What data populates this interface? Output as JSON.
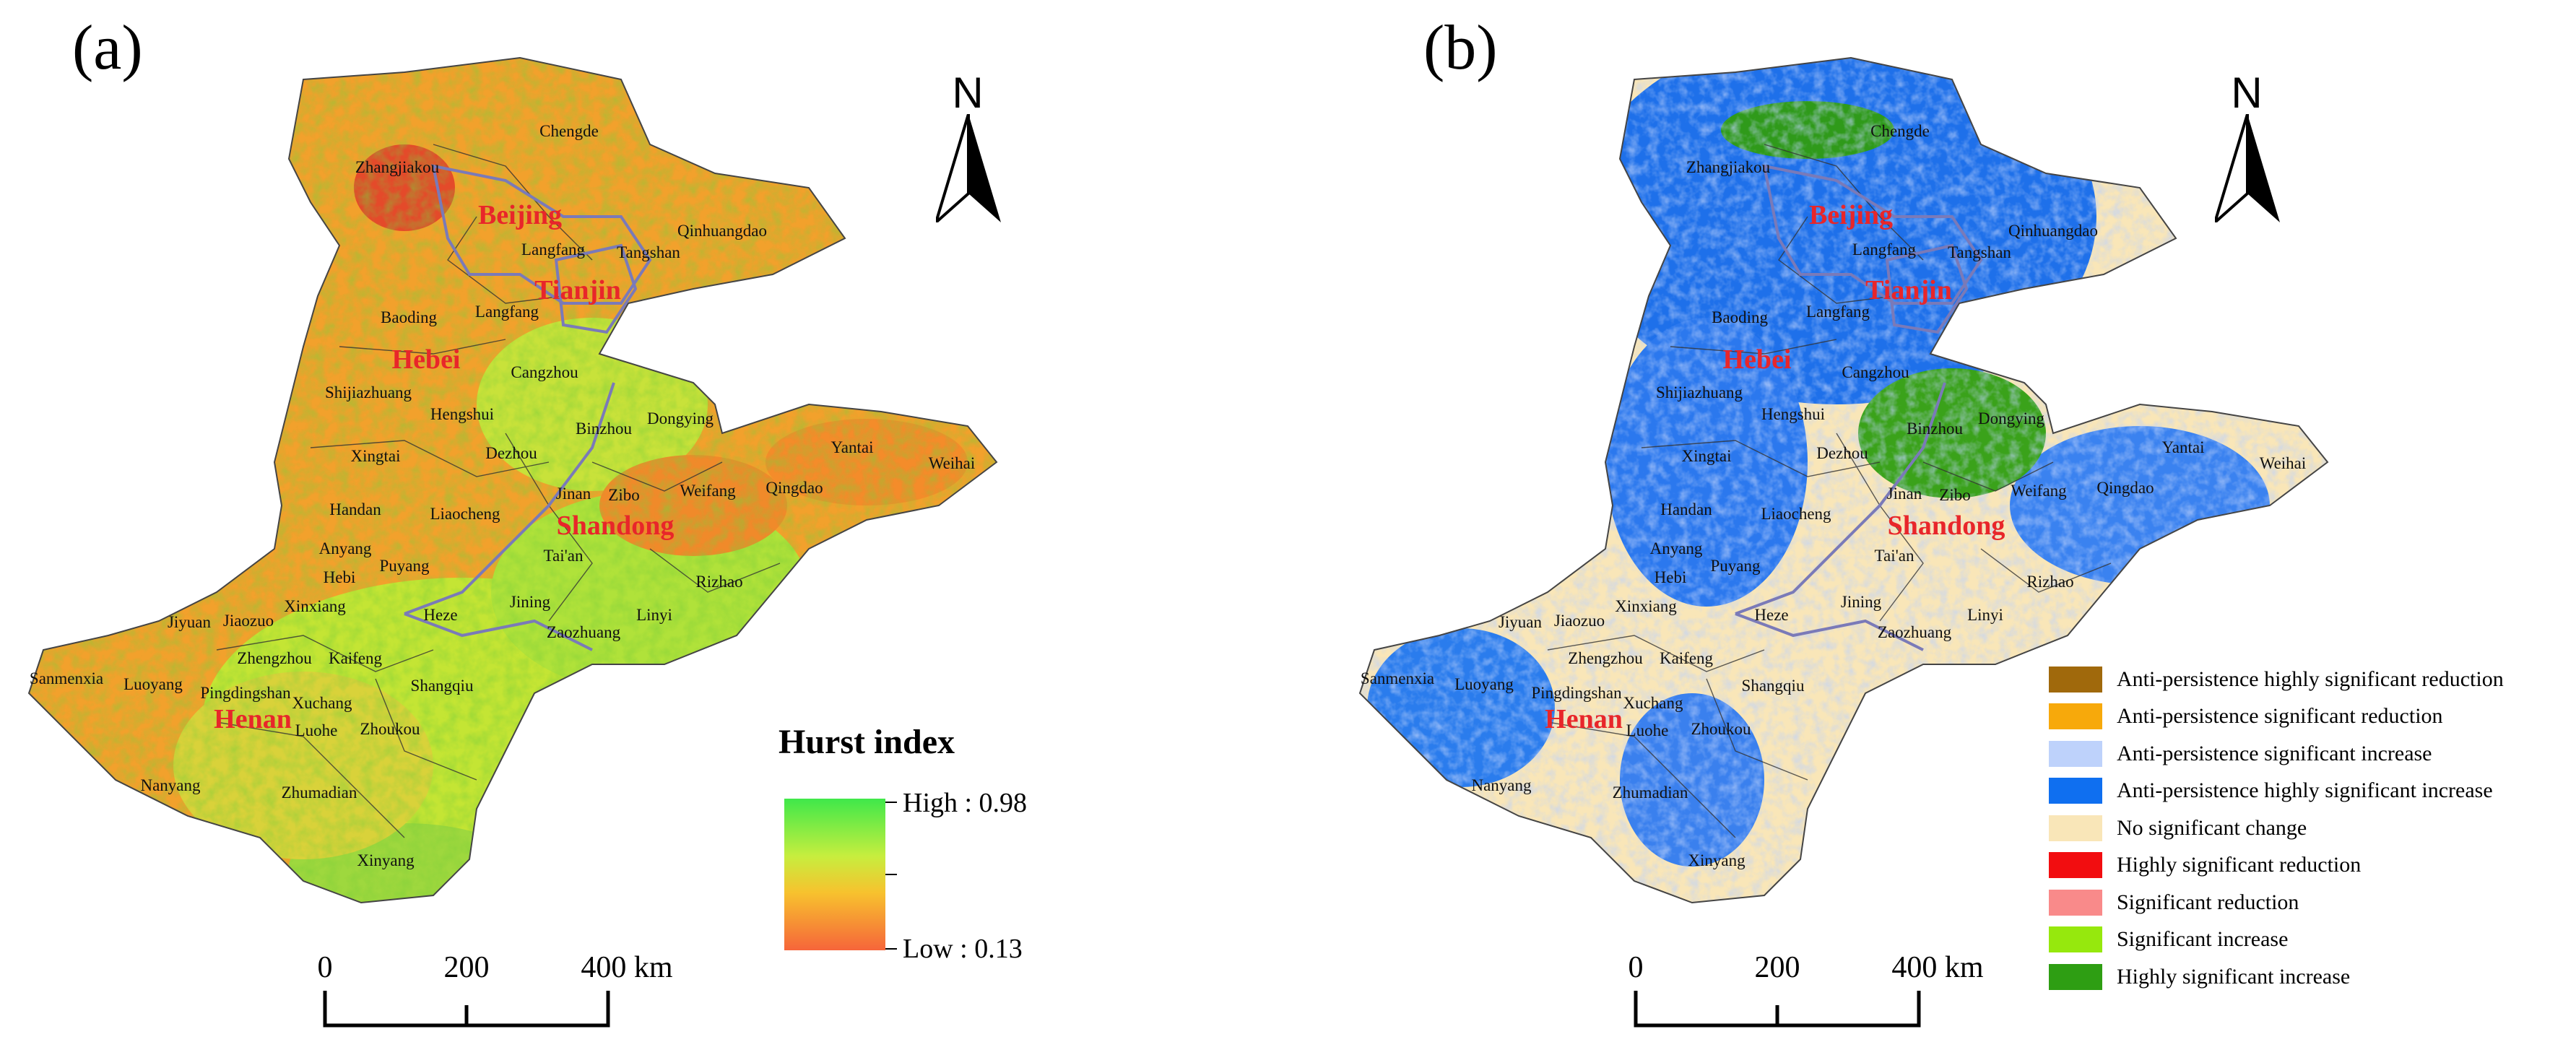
{
  "panel_a": {
    "label": "(a)",
    "north_label": "N",
    "scale": {
      "ticks": [
        "0",
        "200",
        "400 km"
      ]
    },
    "legend": {
      "title": "Hurst index",
      "high_label": "High : 0.98",
      "low_label": "Low : 0.13"
    }
  },
  "panel_b": {
    "label": "(b)",
    "north_label": "N",
    "scale": {
      "ticks": [
        "0",
        "200",
        "400 km"
      ]
    },
    "legend": [
      {
        "label": "Anti-persistence highly significant reduction",
        "color": "#a0690c"
      },
      {
        "label": "Anti-persistence significant reduction",
        "color": "#f7a90b"
      },
      {
        "label": "Anti-persistence significant increase",
        "color": "#bed2fb"
      },
      {
        "label": "Anti-persistence highly significant increase",
        "color": "#0f6ff0"
      },
      {
        "label": "No significant change",
        "color": "#f9e6b8"
      },
      {
        "label": "Highly significant reduction",
        "color": "#f20d10"
      },
      {
        "label": "Significant reduction",
        "color": "#f98a8a"
      },
      {
        "label": "Significant increase",
        "color": "#96e80d"
      },
      {
        "label": "Highly significant increase",
        "color": "#2e9e13"
      }
    ]
  },
  "provinces": [
    "Beijing",
    "Tianjin",
    "Hebei",
    "Shandong",
    "Henan"
  ],
  "cities": [
    "Chengde",
    "Zhangjiakou",
    "Qinhuangdao",
    "Langfang",
    "Tangshan",
    "Baoding",
    "Langfang",
    "Cangzhou",
    "Shijiazhuang",
    "Hengshui",
    "Dongying",
    "Binzhou",
    "Xingtai",
    "Dezhou",
    "Yantai",
    "Weihai",
    "Jinan",
    "Zibo",
    "Weifang",
    "Qingdao",
    "Handan",
    "Liaocheng",
    "Anyang",
    "Puyang",
    "Tai'an",
    "Hebi",
    "Rizhao",
    "Xinxiang",
    "Jiyuan",
    "Jiaozuo",
    "Heze",
    "Jining",
    "Linyi",
    "Zaozhuang",
    "Sanmenxia",
    "Luoyang",
    "Zhengzhou",
    "Kaifeng",
    "Pingdingshan",
    "Xuchang",
    "Shangqiu",
    "Luohe",
    "Zhoukou",
    "Nanyang",
    "Zhumadian",
    "Xinyang"
  ]
}
